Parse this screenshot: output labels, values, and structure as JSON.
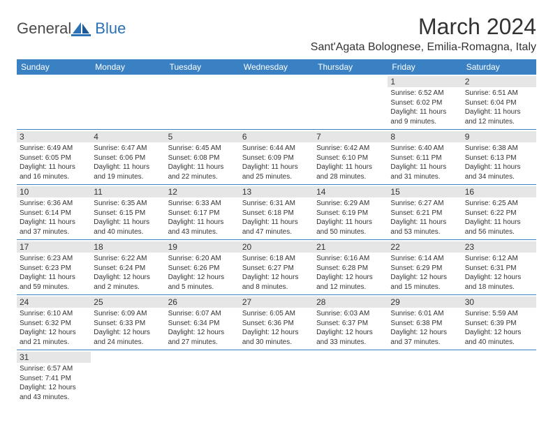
{
  "brand": {
    "general": "General",
    "blue": "Blue"
  },
  "title": "March 2024",
  "location": "Sant'Agata Bolognese, Emilia-Romagna, Italy",
  "colors": {
    "header_bg": "#3a81c4",
    "header_text": "#ffffff",
    "daynum_bg": "#e6e6e6",
    "border": "#3a81c4",
    "text": "#333333",
    "logo_gray": "#4a4a4a",
    "logo_blue": "#2a72b5"
  },
  "weekdays": [
    "Sunday",
    "Monday",
    "Tuesday",
    "Wednesday",
    "Thursday",
    "Friday",
    "Saturday"
  ],
  "weeks": [
    [
      null,
      null,
      null,
      null,
      null,
      {
        "n": "1",
        "sr": "6:52 AM",
        "ss": "6:02 PM",
        "dl": "11 hours and 9 minutes."
      },
      {
        "n": "2",
        "sr": "6:51 AM",
        "ss": "6:04 PM",
        "dl": "11 hours and 12 minutes."
      }
    ],
    [
      {
        "n": "3",
        "sr": "6:49 AM",
        "ss": "6:05 PM",
        "dl": "11 hours and 16 minutes."
      },
      {
        "n": "4",
        "sr": "6:47 AM",
        "ss": "6:06 PM",
        "dl": "11 hours and 19 minutes."
      },
      {
        "n": "5",
        "sr": "6:45 AM",
        "ss": "6:08 PM",
        "dl": "11 hours and 22 minutes."
      },
      {
        "n": "6",
        "sr": "6:44 AM",
        "ss": "6:09 PM",
        "dl": "11 hours and 25 minutes."
      },
      {
        "n": "7",
        "sr": "6:42 AM",
        "ss": "6:10 PM",
        "dl": "11 hours and 28 minutes."
      },
      {
        "n": "8",
        "sr": "6:40 AM",
        "ss": "6:11 PM",
        "dl": "11 hours and 31 minutes."
      },
      {
        "n": "9",
        "sr": "6:38 AM",
        "ss": "6:13 PM",
        "dl": "11 hours and 34 minutes."
      }
    ],
    [
      {
        "n": "10",
        "sr": "6:36 AM",
        "ss": "6:14 PM",
        "dl": "11 hours and 37 minutes."
      },
      {
        "n": "11",
        "sr": "6:35 AM",
        "ss": "6:15 PM",
        "dl": "11 hours and 40 minutes."
      },
      {
        "n": "12",
        "sr": "6:33 AM",
        "ss": "6:17 PM",
        "dl": "11 hours and 43 minutes."
      },
      {
        "n": "13",
        "sr": "6:31 AM",
        "ss": "6:18 PM",
        "dl": "11 hours and 47 minutes."
      },
      {
        "n": "14",
        "sr": "6:29 AM",
        "ss": "6:19 PM",
        "dl": "11 hours and 50 minutes."
      },
      {
        "n": "15",
        "sr": "6:27 AM",
        "ss": "6:21 PM",
        "dl": "11 hours and 53 minutes."
      },
      {
        "n": "16",
        "sr": "6:25 AM",
        "ss": "6:22 PM",
        "dl": "11 hours and 56 minutes."
      }
    ],
    [
      {
        "n": "17",
        "sr": "6:23 AM",
        "ss": "6:23 PM",
        "dl": "11 hours and 59 minutes."
      },
      {
        "n": "18",
        "sr": "6:22 AM",
        "ss": "6:24 PM",
        "dl": "12 hours and 2 minutes."
      },
      {
        "n": "19",
        "sr": "6:20 AM",
        "ss": "6:26 PM",
        "dl": "12 hours and 5 minutes."
      },
      {
        "n": "20",
        "sr": "6:18 AM",
        "ss": "6:27 PM",
        "dl": "12 hours and 8 minutes."
      },
      {
        "n": "21",
        "sr": "6:16 AM",
        "ss": "6:28 PM",
        "dl": "12 hours and 12 minutes."
      },
      {
        "n": "22",
        "sr": "6:14 AM",
        "ss": "6:29 PM",
        "dl": "12 hours and 15 minutes."
      },
      {
        "n": "23",
        "sr": "6:12 AM",
        "ss": "6:31 PM",
        "dl": "12 hours and 18 minutes."
      }
    ],
    [
      {
        "n": "24",
        "sr": "6:10 AM",
        "ss": "6:32 PM",
        "dl": "12 hours and 21 minutes."
      },
      {
        "n": "25",
        "sr": "6:09 AM",
        "ss": "6:33 PM",
        "dl": "12 hours and 24 minutes."
      },
      {
        "n": "26",
        "sr": "6:07 AM",
        "ss": "6:34 PM",
        "dl": "12 hours and 27 minutes."
      },
      {
        "n": "27",
        "sr": "6:05 AM",
        "ss": "6:36 PM",
        "dl": "12 hours and 30 minutes."
      },
      {
        "n": "28",
        "sr": "6:03 AM",
        "ss": "6:37 PM",
        "dl": "12 hours and 33 minutes."
      },
      {
        "n": "29",
        "sr": "6:01 AM",
        "ss": "6:38 PM",
        "dl": "12 hours and 37 minutes."
      },
      {
        "n": "30",
        "sr": "5:59 AM",
        "ss": "6:39 PM",
        "dl": "12 hours and 40 minutes."
      }
    ],
    [
      {
        "n": "31",
        "sr": "6:57 AM",
        "ss": "7:41 PM",
        "dl": "12 hours and 43 minutes."
      },
      null,
      null,
      null,
      null,
      null,
      null
    ]
  ],
  "labels": {
    "sunrise": "Sunrise:",
    "sunset": "Sunset:",
    "daylight": "Daylight:"
  }
}
